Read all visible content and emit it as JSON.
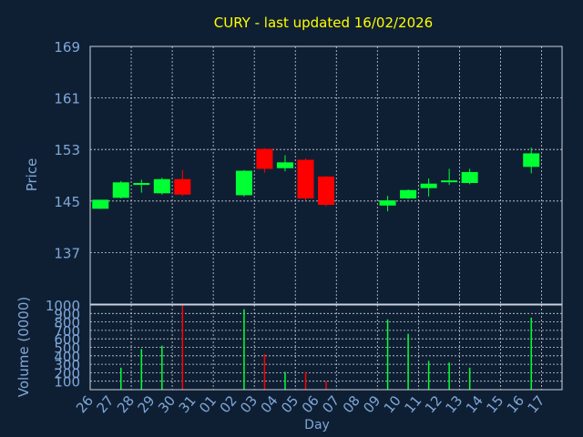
{
  "colors": {
    "background": "#0f1f33",
    "plot_background": "#0f1f33",
    "title": "#ffff00",
    "axis_text": "#7fa7d9",
    "frame": "#c9d2dc",
    "grid": "#c9d2dc",
    "up": "#00ff33",
    "down": "#ff0000"
  },
  "chart_data": [
    {
      "type": "candlestick",
      "title": "CURY - last updated 16/02/2026",
      "ylabel": "Price",
      "ylim": [
        129,
        169
      ],
      "yticks": [
        137,
        145,
        153,
        161,
        169
      ],
      "grid": true,
      "x": [
        "26",
        "27",
        "28",
        "29",
        "30",
        "31",
        "01",
        "02",
        "03",
        "04",
        "05",
        "06",
        "07",
        "08",
        "09",
        "10",
        "11",
        "12",
        "13",
        "14",
        "15",
        "16",
        "17"
      ],
      "candles": [
        {
          "x": "26",
          "open": 143.8,
          "close": 145.2,
          "high": 145.2,
          "low": 143.8
        },
        {
          "x": "27",
          "open": 145.5,
          "close": 147.9,
          "high": 148.1,
          "low": 145.4
        },
        {
          "x": "28",
          "open": 147.5,
          "close": 147.8,
          "high": 148.3,
          "low": 146.3
        },
        {
          "x": "29",
          "open": 146.2,
          "close": 148.4,
          "high": 148.6,
          "low": 146.0
        },
        {
          "x": "30",
          "open": 148.4,
          "close": 146.0,
          "high": 149.8,
          "low": 145.8
        },
        {
          "x": "02",
          "open": 145.9,
          "close": 149.7,
          "high": 149.8,
          "low": 145.7
        },
        {
          "x": "03",
          "open": 153.1,
          "close": 150.0,
          "high": 153.2,
          "low": 149.4
        },
        {
          "x": "04",
          "open": 150.1,
          "close": 151.0,
          "high": 152.1,
          "low": 149.6
        },
        {
          "x": "05",
          "open": 151.4,
          "close": 145.4,
          "high": 151.6,
          "low": 145.1
        },
        {
          "x": "06",
          "open": 148.8,
          "close": 144.4,
          "high": 148.9,
          "low": 144.2
        },
        {
          "x": "09",
          "open": 144.3,
          "close": 145.1,
          "high": 145.8,
          "low": 143.4
        },
        {
          "x": "10",
          "open": 145.4,
          "close": 146.7,
          "high": 146.8,
          "low": 145.3
        },
        {
          "x": "11",
          "open": 147.0,
          "close": 147.7,
          "high": 148.5,
          "low": 145.7
        },
        {
          "x": "12",
          "open": 148.0,
          "close": 148.2,
          "high": 150.0,
          "low": 147.5
        },
        {
          "x": "13",
          "open": 147.8,
          "close": 149.5,
          "high": 150.0,
          "low": 147.6
        },
        {
          "x": "16",
          "open": 150.3,
          "close": 152.4,
          "high": 153.3,
          "low": 149.3
        }
      ]
    },
    {
      "type": "bar",
      "ylabel": "Volume (0000)",
      "xlabel": "Day",
      "ylim": [
        0,
        1000
      ],
      "yticks": [
        100,
        200,
        300,
        400,
        500,
        600,
        700,
        800,
        900,
        1000
      ],
      "grid": true,
      "categories": [
        "26",
        "27",
        "28",
        "29",
        "30",
        "31",
        "01",
        "02",
        "03",
        "04",
        "05",
        "06",
        "07",
        "08",
        "09",
        "10",
        "11",
        "12",
        "13",
        "14",
        "15",
        "16",
        "17"
      ],
      "values": [
        0,
        260,
        480,
        520,
        1000,
        0,
        0,
        950,
        420,
        210,
        210,
        100,
        0,
        0,
        830,
        660,
        340,
        320,
        260,
        0,
        0,
        850,
        0
      ],
      "directions": [
        "up",
        "up",
        "up",
        "up",
        "down",
        "up",
        "up",
        "up",
        "down",
        "up",
        "down",
        "down",
        "up",
        "up",
        "up",
        "up",
        "up",
        "up",
        "up",
        "up",
        "up",
        "up",
        "up"
      ]
    }
  ]
}
